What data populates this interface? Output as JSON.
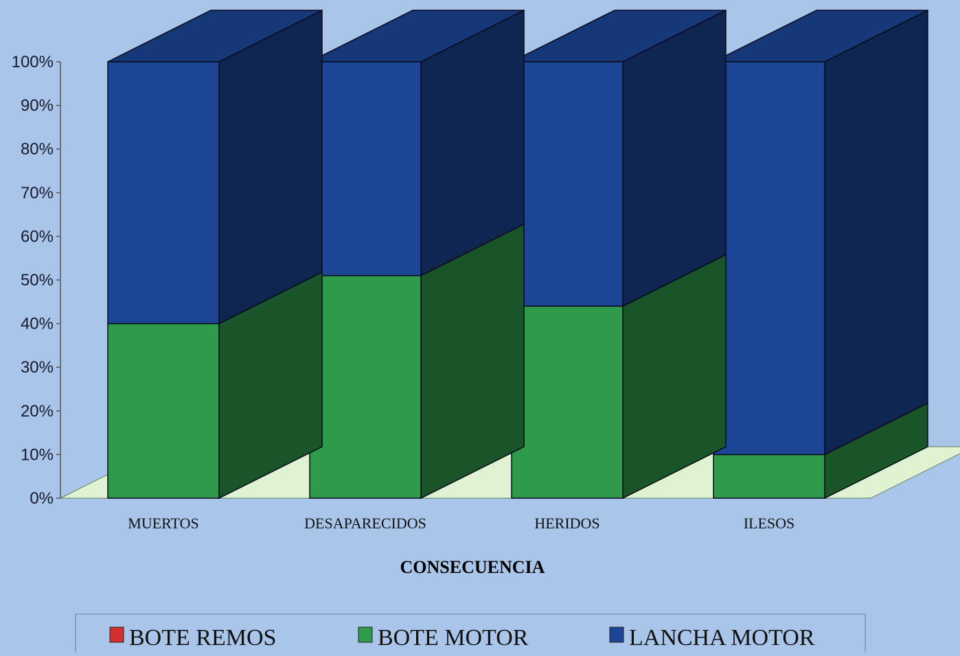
{
  "chart_data": {
    "type": "bar",
    "stacked": true,
    "three_d": true,
    "categories": [
      "MUERTOS",
      "DESAPARECIDOS",
      "HERIDOS",
      "ILESOS"
    ],
    "series": [
      {
        "name": "BOTE REMOS",
        "values": [
          0,
          0,
          0,
          0
        ],
        "color": "#d32f2f"
      },
      {
        "name": "BOTE MOTOR",
        "values": [
          40,
          51,
          44,
          10
        ],
        "color": "#2e9a4a"
      },
      {
        "name": "LANCHA MOTOR",
        "values": [
          60,
          49,
          56,
          90
        ],
        "color": "#1c4596"
      }
    ],
    "y_ticks": [
      "0%",
      "10%",
      "20%",
      "30%",
      "40%",
      "50%",
      "60%",
      "70%",
      "80%",
      "90%",
      "100%"
    ],
    "ylim": [
      0,
      100
    ],
    "xlabel": "CONSECUENCIA",
    "legend": {
      "placement": "bottom"
    },
    "background_color": "#a9c6ea",
    "floor_color": "#dff3d2"
  }
}
